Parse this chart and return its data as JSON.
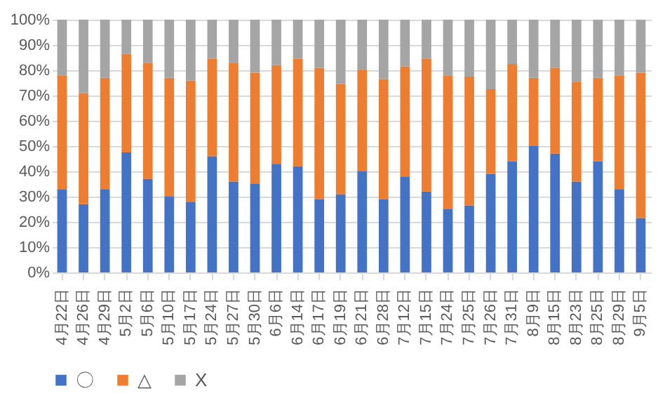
{
  "chart_data": {
    "type": "bar",
    "stacked": true,
    "categories": [
      "4月22日",
      "4月26日",
      "4月29日",
      "5月2日",
      "5月6日",
      "5月10日",
      "5月17日",
      "5月24日",
      "5月27日",
      "5月30日",
      "6月6日",
      "6月14日",
      "6月17日",
      "6月19日",
      "6月21日",
      "6月28日",
      "7月12日",
      "7月15日",
      "7月24日",
      "7月25日",
      "7月26日",
      "7月31日",
      "8月9日",
      "8月15日",
      "8月23日",
      "8月25日",
      "8月29日",
      "9月5日"
    ],
    "series": [
      {
        "name": "〇",
        "color": "#4472c4",
        "values": [
          33,
          27,
          33,
          47.5,
          37,
          30,
          28,
          46,
          36,
          35,
          43,
          42,
          29,
          31,
          40,
          29,
          38,
          32,
          25,
          26.5,
          39,
          44,
          50,
          47,
          36,
          44,
          33,
          21.5
        ]
      },
      {
        "name": "△",
        "color": "#ed7d31",
        "values": [
          45,
          44,
          44,
          39,
          46,
          47,
          48,
          38.5,
          47,
          44,
          39,
          42.5,
          52,
          43.5,
          40,
          47.5,
          43.5,
          52.5,
          53,
          51,
          33.5,
          38.5,
          27,
          34,
          39.5,
          33,
          45,
          57.5
        ]
      },
      {
        "name": "X",
        "color": "#a5a5a5",
        "values": [
          22,
          29,
          23,
          13.5,
          17,
          23,
          24,
          15.5,
          17,
          21,
          18,
          15.5,
          19,
          25.5,
          20,
          23.5,
          18.5,
          15.5,
          22,
          22.5,
          27.5,
          17.5,
          23,
          19,
          24.5,
          23,
          22,
          21
        ]
      }
    ],
    "ylim": [
      0,
      100
    ],
    "yticks": [
      {
        "value": 0,
        "label": "0%"
      },
      {
        "value": 10,
        "label": "10%"
      },
      {
        "value": 20,
        "label": "20%"
      },
      {
        "value": 30,
        "label": "30%"
      },
      {
        "value": 40,
        "label": "40%"
      },
      {
        "value": 50,
        "label": "50%"
      },
      {
        "value": 60,
        "label": "60%"
      },
      {
        "value": 70,
        "label": "70%"
      },
      {
        "value": 80,
        "label": "80%"
      },
      {
        "value": 90,
        "label": "90%"
      },
      {
        "value": 100,
        "label": "100%"
      }
    ],
    "grid": "y",
    "legend": "bottom"
  }
}
